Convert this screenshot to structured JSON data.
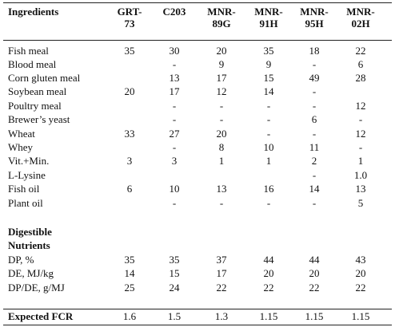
{
  "table": {
    "columns": [
      "Ingredients",
      "GRT-73",
      "C203",
      "MNR-89G",
      "MNR-91H",
      "MNR-95H",
      "MNR-02H"
    ],
    "header_lines": [
      [
        "Ingredients"
      ],
      [
        "GRT-",
        "73"
      ],
      [
        "C203"
      ],
      [
        "MNR-",
        "89G"
      ],
      [
        "MNR-",
        "91H"
      ],
      [
        "MNR-",
        "95H"
      ],
      [
        "MNR-",
        "02H"
      ]
    ],
    "ingredient_rows": [
      {
        "label": "Fish meal",
        "values": [
          "35",
          "30",
          "20",
          "35",
          "18",
          "22"
        ]
      },
      {
        "label": "Blood meal",
        "values": [
          "",
          "-",
          "9",
          "9",
          "-",
          "6"
        ]
      },
      {
        "label": "Corn gluten meal",
        "values": [
          "",
          "13",
          "17",
          "15",
          "49",
          "28"
        ]
      },
      {
        "label": "Soybean meal",
        "values": [
          "20",
          "17",
          "12",
          "14",
          "-",
          ""
        ]
      },
      {
        "label": "Poultry meal",
        "values": [
          "",
          "-",
          "-",
          "-",
          "-",
          "12"
        ]
      },
      {
        "label": "Brewer’s yeast",
        "values": [
          "",
          "-",
          "-",
          "-",
          "6",
          "-"
        ]
      },
      {
        "label": "Wheat",
        "values": [
          "33",
          "27",
          "20",
          "-",
          "-",
          "12"
        ]
      },
      {
        "label": "Whey",
        "values": [
          "",
          "-",
          "8",
          "10",
          "11",
          "-"
        ]
      },
      {
        "label": "Vit.+Min.",
        "values": [
          "3",
          "3",
          "1",
          "1",
          "2",
          "1"
        ]
      },
      {
        "label": "L-Lysine",
        "values": [
          "",
          "",
          "",
          "",
          "-",
          "1.0"
        ]
      },
      {
        "label": "Fish oil",
        "values": [
          "6",
          "10",
          "13",
          "16",
          "14",
          "13"
        ]
      },
      {
        "label": "Plant oil",
        "values": [
          "",
          "-",
          "-",
          "-",
          "-",
          "5"
        ]
      }
    ],
    "section_title_lines": [
      "Digestible",
      "Nutrients"
    ],
    "nutrient_rows": [
      {
        "label": "DP, %",
        "values": [
          "35",
          "35",
          "37",
          "44",
          "44",
          "43"
        ]
      },
      {
        "label": "DE, MJ/kg",
        "values": [
          "14",
          "15",
          "17",
          "20",
          "20",
          "20"
        ]
      },
      {
        "label": "DP/DE, g/MJ",
        "values": [
          "25",
          "24",
          "22",
          "22",
          "22",
          "22"
        ]
      }
    ],
    "fcr_row": {
      "label": "Expected FCR",
      "values": [
        "1.6",
        "1.5",
        "1.3",
        "1.15",
        "1.15",
        "1.15"
      ]
    }
  }
}
